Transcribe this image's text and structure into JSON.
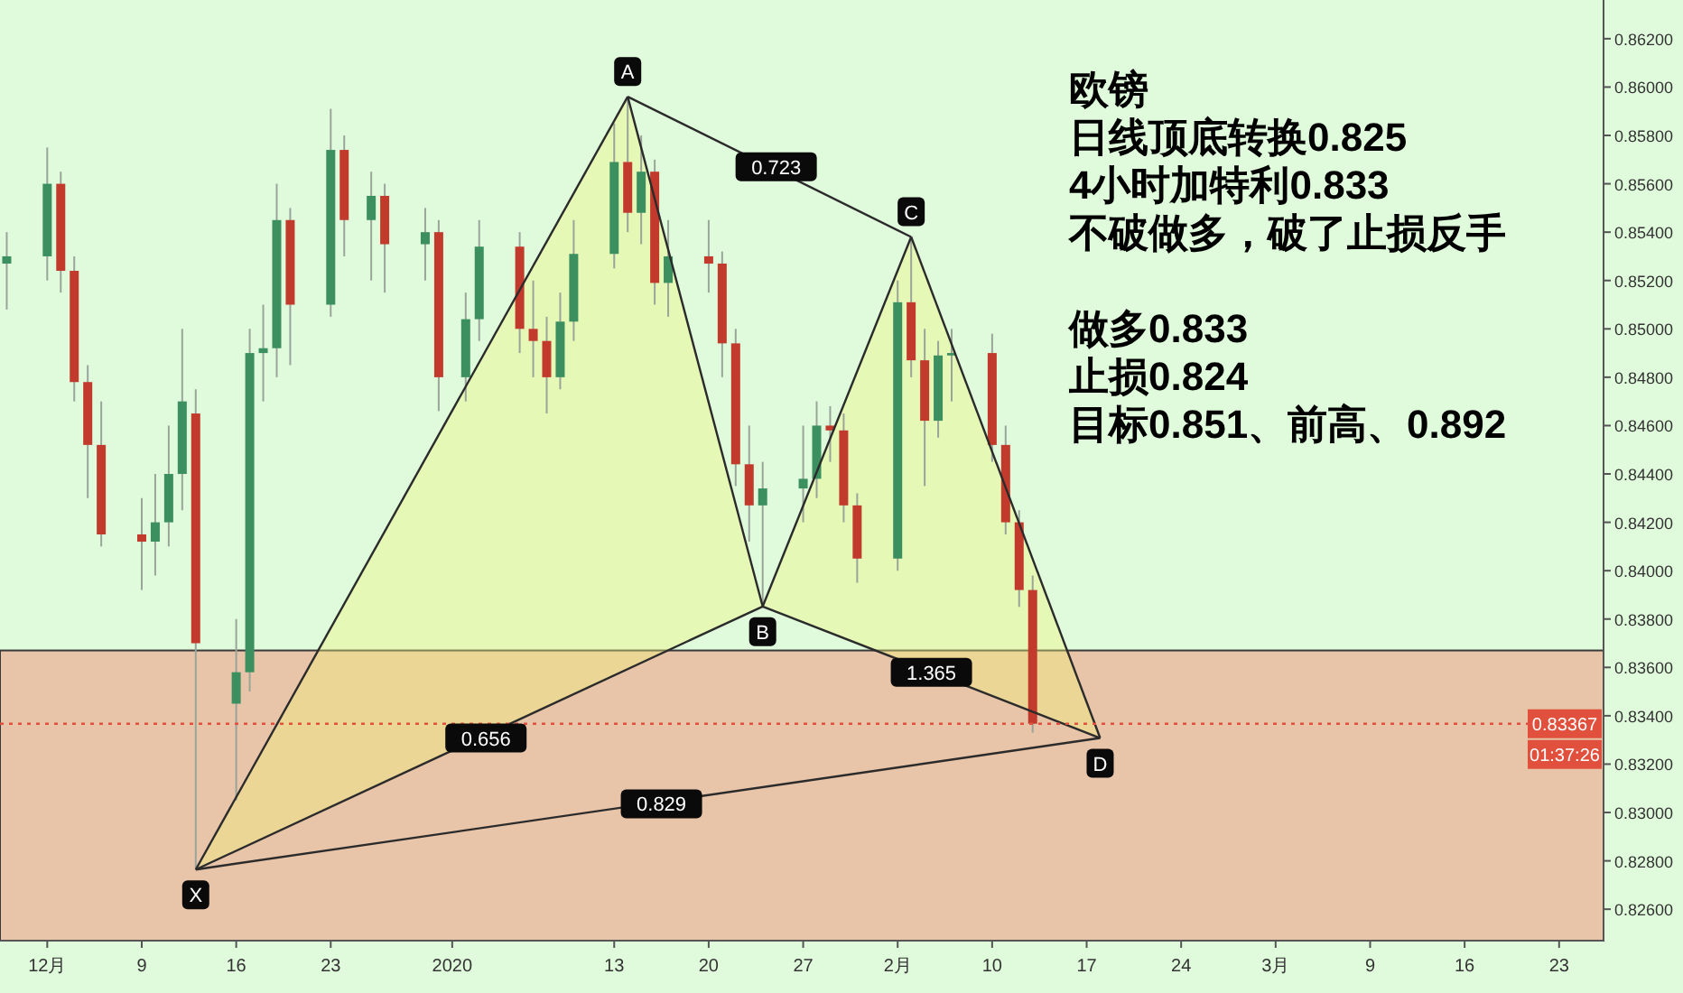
{
  "chart_data": {
    "type": "candlestick",
    "title": "欧镑",
    "annotations": [
      "日线顶底转换0.825",
      "4小时加特利0.833",
      "不破做多，破了止损反手",
      "做多0.833",
      "止损0.824",
      "目标0.851、前高、0.892",
      {
        "text": "X",
        "x": "2019-12-13",
        "y": 0.82764
      },
      {
        "text": "A",
        "x": "2020-01-14",
        "y": 0.8596
      },
      {
        "text": "B",
        "x": "2020-01-24",
        "y": 0.83852
      },
      {
        "text": "C",
        "x": "2020-02-04",
        "y": 0.8538
      },
      {
        "text": "D",
        "x": "2020-02-18",
        "y": 0.83308
      },
      {
        "text": "0.723",
        "x": "2020-01-25",
        "y": 0.8567
      },
      {
        "text": "0.656",
        "x": "2020-01-03T12:00",
        "y": 0.83308
      },
      {
        "text": "1.365",
        "x": "2020-02-05T12:00",
        "y": 0.8358
      },
      {
        "text": "0.829",
        "x": "2020-01-16T12:00",
        "y": 0.83036
      }
    ],
    "x": [
      "2019-11-29",
      "2019-12-02",
      "2019-12-03",
      "2019-12-04",
      "2019-12-05",
      "2019-12-06",
      "2019-12-09",
      "2019-12-10",
      "2019-12-11",
      "2019-12-12",
      "2019-12-13",
      "2019-12-16",
      "2019-12-17",
      "2019-12-18",
      "2019-12-19",
      "2019-12-20",
      "2019-12-23",
      "2019-12-24",
      "2019-12-26",
      "2019-12-27",
      "2019-12-30",
      "2019-12-31",
      "2020-01-02",
      "2020-01-03",
      "2020-01-06",
      "2020-01-07",
      "2020-01-08",
      "2020-01-09",
      "2020-01-10",
      "2020-01-13",
      "2020-01-14",
      "2020-01-15",
      "2020-01-16",
      "2020-01-17",
      "2020-01-20",
      "2020-01-21",
      "2020-01-22",
      "2020-01-23",
      "2020-01-24",
      "2020-01-27",
      "2020-01-28",
      "2020-01-29",
      "2020-01-30",
      "2020-01-31",
      "2020-02-03",
      "2020-02-04",
      "2020-02-05",
      "2020-02-06",
      "2020-02-07",
      "2020-02-10",
      "2020-02-11",
      "2020-02-12",
      "2020-02-13"
    ],
    "ohlc": [
      [
        0.8527,
        0.854,
        0.8508,
        0.853
      ],
      [
        0.853,
        0.8575,
        0.852,
        0.856
      ],
      [
        0.856,
        0.8565,
        0.8515,
        0.8524
      ],
      [
        0.8524,
        0.853,
        0.847,
        0.8478
      ],
      [
        0.8478,
        0.8485,
        0.843,
        0.8452
      ],
      [
        0.8452,
        0.847,
        0.841,
        0.8415
      ],
      [
        0.8415,
        0.843,
        0.8392,
        0.8412
      ],
      [
        0.8412,
        0.844,
        0.8398,
        0.842
      ],
      [
        0.842,
        0.846,
        0.841,
        0.844
      ],
      [
        0.844,
        0.85,
        0.8425,
        0.847
      ],
      [
        0.8465,
        0.8475,
        0.8277,
        0.837
      ],
      [
        0.8345,
        0.838,
        0.8305,
        0.8358
      ],
      [
        0.8358,
        0.85,
        0.835,
        0.849
      ],
      [
        0.849,
        0.851,
        0.847,
        0.8492
      ],
      [
        0.8492,
        0.856,
        0.848,
        0.8545
      ],
      [
        0.8545,
        0.855,
        0.8485,
        0.851
      ],
      [
        0.851,
        0.8591,
        0.8505,
        0.8574
      ],
      [
        0.8574,
        0.858,
        0.853,
        0.8545
      ],
      [
        0.8545,
        0.8565,
        0.852,
        0.8555
      ],
      [
        0.8555,
        0.856,
        0.8515,
        0.8535
      ],
      [
        0.8535,
        0.855,
        0.852,
        0.854
      ],
      [
        0.854,
        0.8545,
        0.8466,
        0.848
      ],
      [
        0.848,
        0.8515,
        0.847,
        0.8504
      ],
      [
        0.8504,
        0.8545,
        0.8495,
        0.8534
      ],
      [
        0.8534,
        0.854,
        0.849,
        0.85
      ],
      [
        0.85,
        0.852,
        0.848,
        0.8495
      ],
      [
        0.8495,
        0.8505,
        0.8465,
        0.848
      ],
      [
        0.848,
        0.8515,
        0.8475,
        0.8503
      ],
      [
        0.8503,
        0.8545,
        0.8495,
        0.8531
      ],
      [
        0.8531,
        0.8585,
        0.8525,
        0.8569
      ],
      [
        0.8569,
        0.8596,
        0.854,
        0.8548
      ],
      [
        0.8548,
        0.858,
        0.8535,
        0.8565
      ],
      [
        0.8565,
        0.857,
        0.851,
        0.8519
      ],
      [
        0.8519,
        0.8545,
        0.8505,
        0.853
      ],
      [
        0.853,
        0.8545,
        0.8515,
        0.8527
      ],
      [
        0.8527,
        0.8532,
        0.848,
        0.8494
      ],
      [
        0.8494,
        0.85,
        0.8435,
        0.8444
      ],
      [
        0.8444,
        0.846,
        0.8412,
        0.8427
      ],
      [
        0.8427,
        0.8445,
        0.8386,
        0.8434
      ],
      [
        0.8434,
        0.846,
        0.842,
        0.8438
      ],
      [
        0.8438,
        0.847,
        0.843,
        0.846
      ],
      [
        0.846,
        0.8468,
        0.8445,
        0.8458
      ],
      [
        0.8458,
        0.8465,
        0.842,
        0.8427
      ],
      [
        0.8427,
        0.8432,
        0.8395,
        0.8405
      ],
      [
        0.8405,
        0.852,
        0.84,
        0.8511
      ],
      [
        0.8511,
        0.8538,
        0.848,
        0.8487
      ],
      [
        0.8487,
        0.85,
        0.8435,
        0.8462
      ],
      [
        0.8462,
        0.8495,
        0.8455,
        0.8489
      ],
      [
        0.8489,
        0.85,
        0.847,
        0.849
      ],
      [
        0.849,
        0.8498,
        0.8445,
        0.8452
      ],
      [
        0.8452,
        0.846,
        0.8415,
        0.842
      ],
      [
        0.842,
        0.8425,
        0.8385,
        0.8392
      ],
      [
        0.8392,
        0.8398,
        0.8333,
        0.83367
      ]
    ],
    "series": [
      {
        "type": "line",
        "color": "#2b2b2b",
        "x": [
          "2019-12-13",
          "2020-01-14"
        ],
        "values": [
          0.82764,
          0.8596
        ]
      },
      {
        "type": "line",
        "color": "#2b2b2b",
        "x": [
          "2020-01-14",
          "2020-01-24"
        ],
        "values": [
          0.8596,
          0.83852
        ]
      },
      {
        "type": "line",
        "color": "#2b2b2b",
        "x": [
          "2020-01-24",
          "2020-02-04"
        ],
        "values": [
          0.83852,
          0.8538
        ]
      },
      {
        "type": "line",
        "color": "#2b2b2b",
        "x": [
          "2020-02-04",
          "2020-02-18"
        ],
        "values": [
          0.8538,
          0.83308
        ]
      },
      {
        "type": "line",
        "color": "#2b2b2b",
        "x": [
          "2019-12-13",
          "2020-01-24"
        ],
        "values": [
          0.82764,
          0.83852
        ]
      },
      {
        "type": "line",
        "color": "#2b2b2b",
        "x": [
          "2020-01-24",
          "2020-02-18"
        ],
        "values": [
          0.83852,
          0.83308
        ]
      },
      {
        "type": "line",
        "color": "#2b2b2b",
        "x": [
          "2019-12-13",
          "2020-02-18"
        ],
        "values": [
          0.82764,
          0.83308
        ]
      },
      {
        "type": "line",
        "color": "#2b2b2b",
        "x": [
          "2020-01-14",
          "2020-02-04"
        ],
        "values": [
          0.8596,
          0.8538
        ]
      }
    ],
    "xlim": [
      "2019-11-28T12:00",
      "2020-03-26T07:00"
    ],
    "xticks": [
      {
        "value": "2019-12-02",
        "label": "12月"
      },
      {
        "value": "2019-12-09",
        "label": "9"
      },
      {
        "value": "2019-12-16",
        "label": "16"
      },
      {
        "value": "2019-12-23",
        "label": "23"
      },
      {
        "value": "2020-01-01",
        "label": "2020"
      },
      {
        "value": "2020-01-13",
        "label": "13"
      },
      {
        "value": "2020-01-20",
        "label": "20"
      },
      {
        "value": "2020-01-27",
        "label": "27"
      },
      {
        "value": "2020-02-03",
        "label": "2月"
      },
      {
        "value": "2020-02-10",
        "label": "10"
      },
      {
        "value": "2020-02-17",
        "label": "17"
      },
      {
        "value": "2020-02-24",
        "label": "24"
      },
      {
        "value": "2020-03-02",
        "label": "3月"
      },
      {
        "value": "2020-03-09",
        "label": "9"
      },
      {
        "value": "2020-03-16",
        "label": "16"
      },
      {
        "value": "2020-03-23",
        "label": "23"
      }
    ],
    "ylim": [
      0.8247,
      0.8636
    ],
    "yticks": [
      {
        "value": 0.826,
        "label": "0.82600"
      },
      {
        "value": 0.828,
        "label": "0.82800"
      },
      {
        "value": 0.83,
        "label": "0.83000"
      },
      {
        "value": 0.832,
        "label": "0.83200"
      },
      {
        "value": 0.834,
        "label": "0.83400"
      },
      {
        "value": 0.836,
        "label": "0.83600"
      },
      {
        "value": 0.838,
        "label": "0.83800"
      },
      {
        "value": 0.84,
        "label": "0.84000"
      },
      {
        "value": 0.842,
        "label": "0.84200"
      },
      {
        "value": 0.844,
        "label": "0.84400"
      },
      {
        "value": 0.846,
        "label": "0.84600"
      },
      {
        "value": 0.848,
        "label": "0.84800"
      },
      {
        "value": 0.85,
        "label": "0.85000"
      },
      {
        "value": 0.852,
        "label": "0.85200"
      },
      {
        "value": 0.854,
        "label": "0.85400"
      },
      {
        "value": 0.856,
        "label": "0.85600"
      },
      {
        "value": 0.858,
        "label": "0.85800"
      },
      {
        "value": 0.86,
        "label": "0.86000"
      },
      {
        "value": 0.862,
        "label": "0.86200"
      }
    ],
    "ref_lines": [
      {
        "axis": "y",
        "value": 0.83367,
        "label": "0.83367\n01:37:26",
        "color": "#e0503c",
        "line_style": "dotted"
      }
    ],
    "bands": [
      {
        "axis": "y",
        "from": 0.8247,
        "to": 0.8367,
        "color": "#e8c4a8"
      }
    ]
  }
}
